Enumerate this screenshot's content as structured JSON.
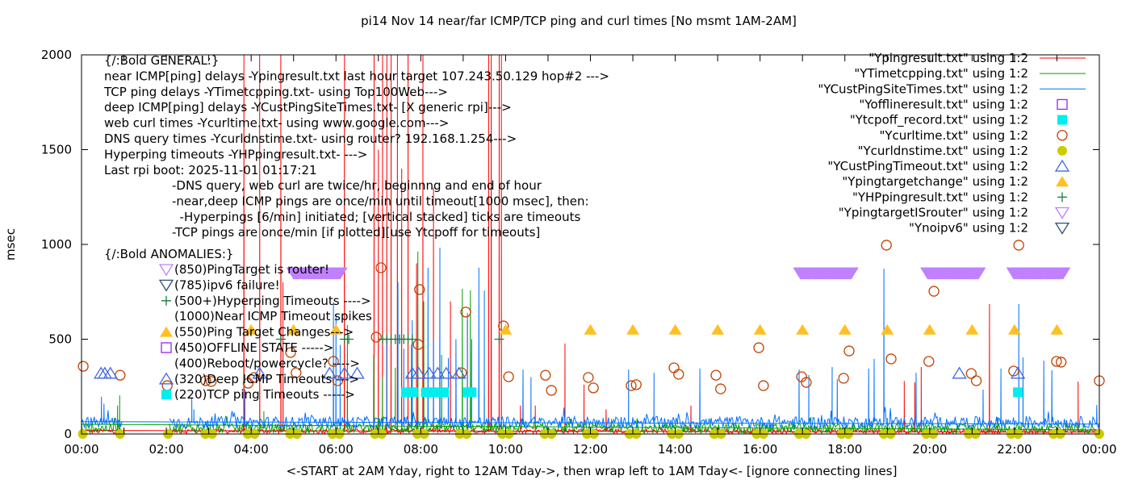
{
  "chart_data": {
    "type": "line",
    "title": "pi14 Nov 14  near/far ICMP/TCP ping and curl times [No msmt 1AM-2AM]",
    "xlabel": "<-START at 2AM Yday, right to 12AM Tday->, then wrap left to 1AM Tday<- [ignore connecting lines]",
    "ylabel": "msec",
    "xlim_hours": [
      0,
      24
    ],
    "ylim": [
      0,
      2000
    ],
    "x_ticks": [
      "00:00",
      "02:00",
      "04:00",
      "06:00",
      "08:00",
      "10:00",
      "12:00",
      "14:00",
      "16:00",
      "18:00",
      "20:00",
      "22:00",
      "00:00"
    ],
    "y_ticks": [
      "0",
      "500",
      "1000",
      "1500",
      "2000"
    ],
    "no_data_gap_hours": [
      1.0,
      2.05
    ],
    "legend_position": "top-right",
    "line_series": [
      {
        "name": "\"Ypingresult.txt\" using 1:2",
        "color": "#ff0000",
        "baseline": 15,
        "noise": 12,
        "spikes": [
          [
            3.83,
            2000
          ],
          [
            4.2,
            2000
          ],
          [
            4.7,
            2000
          ],
          [
            4.75,
            800
          ],
          [
            6.2,
            2000
          ],
          [
            6.9,
            2000
          ],
          [
            7.0,
            1500
          ],
          [
            7.1,
            2000
          ],
          [
            7.2,
            2000
          ],
          [
            7.3,
            2000
          ],
          [
            7.45,
            2000
          ],
          [
            7.55,
            1400
          ],
          [
            7.7,
            2000
          ],
          [
            7.9,
            900
          ],
          [
            8.05,
            2000
          ],
          [
            8.3,
            1300
          ],
          [
            8.45,
            800
          ],
          [
            8.7,
            700
          ],
          [
            9.1,
            600
          ],
          [
            9.6,
            2000
          ],
          [
            9.66,
            2000
          ],
          [
            9.85,
            2000
          ],
          [
            9.9,
            2000
          ],
          [
            10.35,
            150
          ],
          [
            10.7,
            150
          ],
          [
            11.4,
            477
          ],
          [
            11.85,
            260
          ],
          [
            12.37,
            130
          ],
          [
            14.37,
            150
          ],
          [
            19.4,
            280
          ],
          [
            19.65,
            272
          ],
          [
            19.8,
            353
          ],
          [
            21.41,
            685
          ],
          [
            23.5,
            276
          ]
        ]
      },
      {
        "name": "\"YTimetcpping.txt\" using 1:2",
        "color": "#00a000",
        "baseline": 30,
        "noise": 25,
        "spikes": [
          [
            0.9,
            204
          ],
          [
            0.85,
            150
          ],
          [
            4.3,
            120
          ],
          [
            6.27,
            574
          ],
          [
            6.89,
            417
          ],
          [
            7.1,
            300
          ],
          [
            7.4,
            350
          ],
          [
            7.78,
            472
          ],
          [
            7.93,
            962
          ],
          [
            8.07,
            700
          ],
          [
            8.49,
            417
          ],
          [
            8.98,
            766
          ],
          [
            9.17,
            757
          ],
          [
            9.5,
            200
          ],
          [
            12.5,
            80
          ],
          [
            17.2,
            90
          ],
          [
            19.0,
            85
          ],
          [
            21.6,
            90
          ]
        ]
      },
      {
        "name": "\"YCustPingSiteTimes.txt\" using 1:2",
        "color": "#0070ff",
        "baseline": 62,
        "noise": 30,
        "spikes": [
          [
            0.47,
            196
          ],
          [
            0.53,
            160
          ],
          [
            2.6,
            190
          ],
          [
            2.65,
            130
          ],
          [
            3.85,
            234
          ],
          [
            5.94,
            694
          ],
          [
            6.0,
            630
          ],
          [
            6.1,
            470
          ],
          [
            7.2,
            500
          ],
          [
            7.46,
            800
          ],
          [
            7.6,
            450
          ],
          [
            7.8,
            600
          ],
          [
            8.17,
            877
          ],
          [
            8.3,
            500
          ],
          [
            8.45,
            983
          ],
          [
            8.65,
            400
          ],
          [
            8.83,
            500
          ],
          [
            9.1,
            638
          ],
          [
            9.2,
            500
          ],
          [
            9.37,
            877
          ],
          [
            9.5,
            757
          ],
          [
            10.41,
            340
          ],
          [
            10.6,
            300
          ],
          [
            12.9,
            340
          ],
          [
            13.5,
            323
          ],
          [
            14.58,
            345
          ],
          [
            16.92,
            340
          ],
          [
            17.15,
            311
          ],
          [
            17.7,
            353
          ],
          [
            17.82,
            289
          ],
          [
            18.56,
            345
          ],
          [
            18.69,
            396
          ],
          [
            18.92,
            872
          ],
          [
            19.68,
            323
          ],
          [
            21.26,
            234
          ],
          [
            21.68,
            345
          ],
          [
            22.1,
            685
          ],
          [
            22.2,
            404
          ],
          [
            22.69,
            387
          ],
          [
            22.88,
            336
          ],
          [
            23.94,
            153
          ]
        ]
      }
    ],
    "point_series": [
      {
        "key": "offline",
        "name": "\"Yofflineresult.txt\" using 1:2",
        "marker": "square-open",
        "color": "#a020f0",
        "points": []
      },
      {
        "key": "tcpoff",
        "name": "\"Ytcpoff_record.txt\" using 1:2",
        "marker": "square-filled",
        "color": "#00eeee",
        "points": [
          [
            7.65,
            220
          ],
          [
            7.82,
            220
          ],
          [
            8.12,
            220
          ],
          [
            8.25,
            220
          ],
          [
            8.4,
            220
          ],
          [
            8.55,
            220
          ],
          [
            9.1,
            220
          ],
          [
            9.2,
            220
          ],
          [
            22.08,
            220
          ]
        ]
      },
      {
        "key": "curl",
        "name": "\"Ycurltime.txt\" using 1:2",
        "marker": "circle-open",
        "color": "#c04000",
        "points": [
          [
            0.04,
            357
          ],
          [
            0.91,
            310
          ],
          [
            2.02,
            255
          ],
          [
            2.93,
            281
          ],
          [
            3.06,
            277
          ],
          [
            3.93,
            268
          ],
          [
            4.07,
            298
          ],
          [
            4.93,
            430
          ],
          [
            5.06,
            323
          ],
          [
            5.94,
            383
          ],
          [
            6.04,
            281
          ],
          [
            6.95,
            511
          ],
          [
            7.06,
            877
          ],
          [
            7.94,
            472
          ],
          [
            7.97,
            762
          ],
          [
            8.96,
            323
          ],
          [
            9.06,
            643
          ],
          [
            9.95,
            570
          ],
          [
            10.07,
            302
          ],
          [
            10.94,
            310
          ],
          [
            11.08,
            230
          ],
          [
            11.95,
            298
          ],
          [
            12.07,
            243
          ],
          [
            12.96,
            255
          ],
          [
            13.08,
            260
          ],
          [
            13.97,
            349
          ],
          [
            14.08,
            315
          ],
          [
            14.96,
            310
          ],
          [
            15.07,
            238
          ],
          [
            15.97,
            455
          ],
          [
            16.08,
            255
          ],
          [
            16.98,
            302
          ],
          [
            17.09,
            272
          ],
          [
            17.97,
            294
          ],
          [
            18.1,
            438
          ],
          [
            18.98,
            996
          ],
          [
            19.09,
            396
          ],
          [
            19.98,
            383
          ],
          [
            20.1,
            753
          ],
          [
            20.98,
            319
          ],
          [
            21.1,
            281
          ],
          [
            21.98,
            332
          ],
          [
            22.1,
            996
          ],
          [
            22.99,
            383
          ],
          [
            23.1,
            379
          ],
          [
            24.0,
            281
          ]
        ]
      },
      {
        "key": "dns",
        "name": "\"Ycurldnstime.txt\" using 1:2",
        "marker": "circle-filled",
        "color": "#cccc00",
        "points": [
          [
            0.03,
            0
          ],
          [
            0.91,
            0
          ],
          [
            2.04,
            0
          ],
          [
            2.92,
            0
          ],
          [
            3.08,
            0
          ],
          [
            3.92,
            0
          ],
          [
            4.08,
            0
          ],
          [
            4.92,
            0
          ],
          [
            5.08,
            0
          ],
          [
            5.92,
            0
          ],
          [
            6.08,
            0
          ],
          [
            6.92,
            0
          ],
          [
            7.08,
            0
          ],
          [
            7.92,
            0
          ],
          [
            8.08,
            0
          ],
          [
            8.92,
            0
          ],
          [
            9.08,
            0
          ],
          [
            9.92,
            0
          ],
          [
            10.08,
            0
          ],
          [
            10.92,
            0
          ],
          [
            11.08,
            0
          ],
          [
            11.92,
            0
          ],
          [
            12.08,
            0
          ],
          [
            12.92,
            0
          ],
          [
            13.08,
            0
          ],
          [
            13.92,
            0
          ],
          [
            14.08,
            0
          ],
          [
            14.92,
            0
          ],
          [
            15.08,
            0
          ],
          [
            15.92,
            0
          ],
          [
            16.08,
            0
          ],
          [
            16.92,
            0
          ],
          [
            17.08,
            0
          ],
          [
            17.92,
            0
          ],
          [
            18.08,
            0
          ],
          [
            18.92,
            0
          ],
          [
            19.08,
            0
          ],
          [
            19.92,
            0
          ],
          [
            20.08,
            0
          ],
          [
            20.92,
            0
          ],
          [
            21.08,
            0
          ],
          [
            21.92,
            0
          ],
          [
            22.08,
            0
          ],
          [
            22.92,
            0
          ],
          [
            23.08,
            0
          ],
          [
            24.0,
            0
          ]
        ]
      },
      {
        "key": "deeptimeout",
        "name": "\"YCustPingTimeout.txt\" using 1:2",
        "marker": "triangle-up-open",
        "color": "#4169e1",
        "points": [
          [
            0.46,
            320
          ],
          [
            0.55,
            320
          ],
          [
            0.68,
            320
          ],
          [
            4.2,
            320
          ],
          [
            5.85,
            320
          ],
          [
            6.2,
            320
          ],
          [
            6.5,
            320
          ],
          [
            7.8,
            320
          ],
          [
            7.95,
            320
          ],
          [
            8.2,
            320
          ],
          [
            8.4,
            320
          ],
          [
            8.6,
            320
          ],
          [
            8.9,
            320
          ],
          [
            20.7,
            320
          ],
          [
            22.08,
            320
          ]
        ]
      },
      {
        "key": "targetchange",
        "name": "\"Ypingtargetchange\" using 1:2",
        "marker": "triangle-up-filled",
        "color": "#ffc020",
        "points": [
          [
            4,
            550
          ],
          [
            5,
            550
          ],
          [
            6,
            550
          ],
          [
            10,
            550
          ],
          [
            12,
            550
          ],
          [
            13,
            550
          ],
          [
            14,
            550
          ],
          [
            15,
            550
          ],
          [
            16,
            550
          ],
          [
            17,
            550
          ],
          [
            18,
            550
          ],
          [
            19,
            550
          ],
          [
            20,
            550
          ],
          [
            21,
            550
          ],
          [
            22,
            550
          ],
          [
            23,
            550
          ]
        ]
      },
      {
        "key": "hyperping",
        "name": "\"YHPpingresult.txt\" using 1:2",
        "marker": "plus",
        "color": "#1a7a40",
        "points": [
          [
            4.7,
            500
          ],
          [
            6.2,
            500
          ],
          [
            6.3,
            500
          ],
          [
            7.1,
            500
          ],
          [
            7.2,
            500
          ],
          [
            7.3,
            500
          ],
          [
            7.4,
            500
          ],
          [
            7.5,
            500
          ],
          [
            7.6,
            500
          ],
          [
            7.7,
            500
          ],
          [
            7.8,
            500
          ],
          [
            9.85,
            500
          ]
        ]
      },
      {
        "key": "isrouter",
        "name": "\"YpingtargetISrouter\" using 1:2",
        "marker": "triangle-down-open",
        "color": "#c080ff",
        "ranges": [
          [
            5.0,
            6.1
          ],
          [
            16.95,
            18.15
          ],
          [
            19.95,
            21.15
          ],
          [
            21.98,
            23.15
          ]
        ],
        "value": 850,
        "points": []
      },
      {
        "key": "noipv6",
        "name": "\"Ynoipv6\" using 1:2",
        "marker": "triangle-down-open",
        "color": "#305070",
        "points": []
      }
    ],
    "annotations": {
      "general": [
        "{/:Bold GENERAL:}",
        "near ICMP[ping] delays -Ypingresult.txt last hour target 107.243.50.129 hop#2 --->",
        "TCP ping delays -YTimetcpping.txt- using Top100Web--->",
        "deep ICMP[ping] delays -YCustPingSiteTimes.txt- [X generic rpi]--->",
        "web curl times -Ycurltime.txt- using www.google.com--->",
        "DNS query times -Ycurldnstime.txt- using router? 192.168.1.254--->",
        "Hyperping timeouts -YHPpingresult.txt- --->",
        "Last rpi boot: 2025-11-01 01:17:21"
      ],
      "notes": [
        "-DNS query, web curl are twice/hr, beginnng and end of hour",
        "-near,deep ICMP pings are once/min until timeout[1000 msec], then:",
        "  -Hyperpings [6/min] initiated; [vertical stacked] ticks are timeouts",
        "-TCP pings are once/min [if plotted][use Ytcpoff for timeouts]"
      ],
      "anomalies_title": "{/:Bold ANOMALIES:}",
      "anomalies": [
        {
          "marker": "triangle-down-open",
          "color": "#c080ff",
          "text": "(850)PingTarget is router!"
        },
        {
          "marker": "triangle-down-open",
          "color": "#305070",
          "text": "(785)ipv6 failure!"
        },
        {
          "marker": "plus",
          "color": "#1a7a40",
          "text": "(500+)Hyperping Timeouts ---->"
        },
        {
          "marker": "none",
          "color": "#000000",
          "text": "(1000)Near ICMP Timeout spikes"
        },
        {
          "marker": "triangle-up-filled",
          "color": "#ffc020",
          "text": "(550)Ping Target Changes--->"
        },
        {
          "marker": "square-open",
          "color": "#a020f0",
          "text": "(450)OFFLINE STATE ----->"
        },
        {
          "marker": "none",
          "color": "#000000",
          "text": "(400)Reboot/powercycle? ---->"
        },
        {
          "marker": "triangle-up-open",
          "color": "#4169e1",
          "text": "(320)Deep ICMP Timeouts --->"
        },
        {
          "marker": "square-filled",
          "color": "#00eeee",
          "text": "(220)TCP ping Timeouts ----->"
        }
      ]
    }
  }
}
